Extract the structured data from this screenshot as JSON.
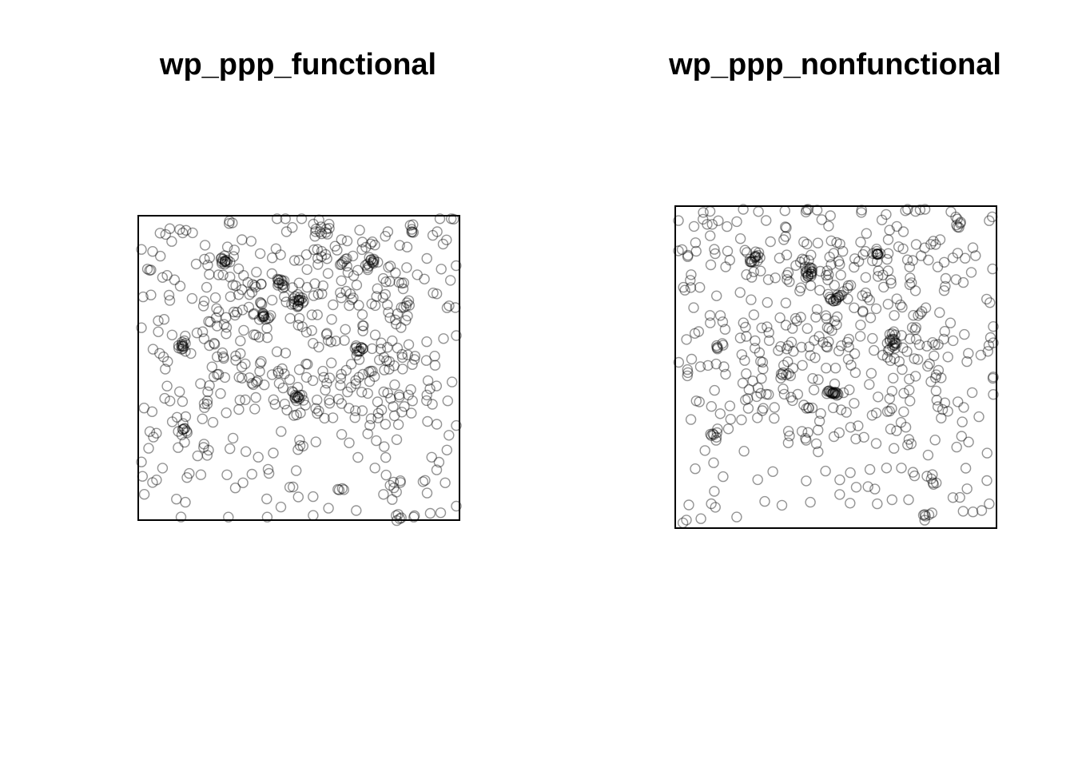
{
  "colors": {
    "point_stroke": "#000000",
    "background": "#ffffff"
  },
  "chart_data": [
    {
      "type": "scatter",
      "title": "wp_ppp_functional",
      "xlabel": "",
      "ylabel": "",
      "grid": false,
      "legend": "none",
      "marker": "open-circle",
      "xlim": [
        0,
        100
      ],
      "ylim": [
        0,
        100
      ],
      "clusters": [
        {
          "x": 27,
          "y": 85,
          "n": 14
        },
        {
          "x": 44,
          "y": 78,
          "n": 12
        },
        {
          "x": 50,
          "y": 72,
          "n": 16
        },
        {
          "x": 39,
          "y": 67,
          "n": 12
        },
        {
          "x": 14,
          "y": 57,
          "n": 10
        },
        {
          "x": 69,
          "y": 56,
          "n": 12
        },
        {
          "x": 50,
          "y": 41,
          "n": 12
        },
        {
          "x": 14,
          "y": 30,
          "n": 8
        },
        {
          "x": 85,
          "y": 95,
          "n": 6
        },
        {
          "x": 73,
          "y": 85,
          "n": 8
        },
        {
          "x": 64,
          "y": 85,
          "n": 6
        },
        {
          "x": 57,
          "y": 95,
          "n": 7
        },
        {
          "x": 81,
          "y": 1,
          "n": 5
        },
        {
          "x": 64,
          "y": 10,
          "n": 4
        },
        {
          "x": 80,
          "y": 12,
          "n": 4
        }
      ],
      "scatter_n": 520
    },
    {
      "type": "scatter",
      "title": "wp_ppp_nonfunctional",
      "xlabel": "",
      "ylabel": "",
      "grid": false,
      "legend": "none",
      "marker": "open-circle",
      "xlim": [
        0,
        100
      ],
      "ylim": [
        0,
        100
      ],
      "clusters": [
        {
          "x": 25,
          "y": 84,
          "n": 12
        },
        {
          "x": 42,
          "y": 79,
          "n": 12
        },
        {
          "x": 50,
          "y": 71,
          "n": 12
        },
        {
          "x": 63,
          "y": 85,
          "n": 10
        },
        {
          "x": 68,
          "y": 57,
          "n": 12
        },
        {
          "x": 49,
          "y": 42,
          "n": 16
        },
        {
          "x": 12,
          "y": 29,
          "n": 8
        },
        {
          "x": 34,
          "y": 48,
          "n": 6
        },
        {
          "x": 88,
          "y": 95,
          "n": 6
        },
        {
          "x": 78,
          "y": 4,
          "n": 5
        },
        {
          "x": 80,
          "y": 14,
          "n": 4
        },
        {
          "x": 13,
          "y": 56,
          "n": 6
        }
      ],
      "scatter_n": 500
    }
  ]
}
